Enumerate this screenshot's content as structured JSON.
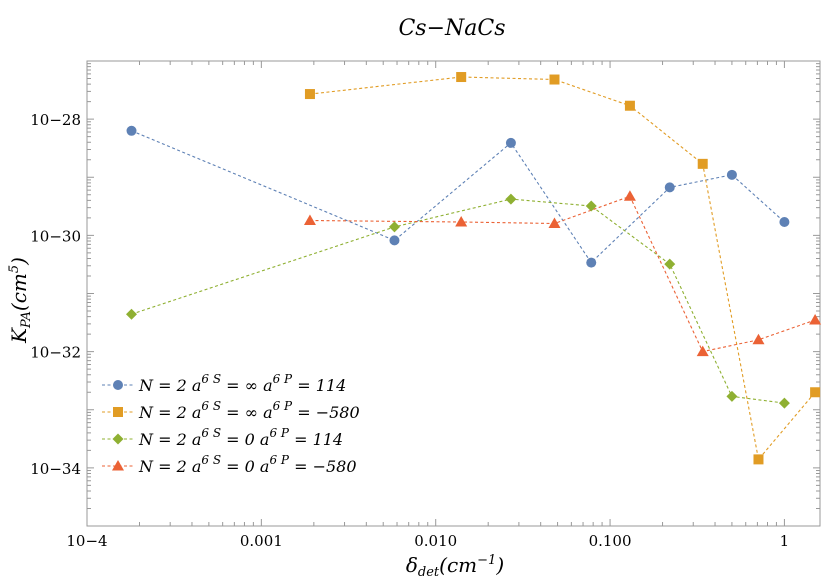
{
  "chart_data": {
    "type": "scatter",
    "title": "Cs−NaCs",
    "xlabel": "δdet(cm−1)",
    "ylabel": "KPA(cm5)",
    "x_scale": "log",
    "y_scale": "log",
    "xlim": [
      0.0001,
      1.6
    ],
    "ylim": [
      1e-35,
      1e-27
    ],
    "grid": false,
    "legend_position": "bottom-left",
    "x_ticks": [
      {
        "value": 0.0001,
        "label": "10−4"
      },
      {
        "value": 0.001,
        "label": "0.001"
      },
      {
        "value": 0.01,
        "label": "0.010"
      },
      {
        "value": 0.1,
        "label": "0.100"
      },
      {
        "value": 1,
        "label": "1"
      }
    ],
    "y_ticks": [
      {
        "value": 1e-28,
        "label": "10−28"
      },
      {
        "value": 1e-30,
        "label": "10−30"
      },
      {
        "value": 1e-32,
        "label": "10−32"
      },
      {
        "value": 1e-34,
        "label": "10−34"
      }
    ],
    "series": [
      {
        "name": "N = 2 a6S = ∞ a6P = 114",
        "color": "#5e81b5",
        "marker": "circle",
        "x": [
          0.00018,
          0.0058,
          0.027,
          0.078,
          0.22,
          0.5,
          1.0
        ],
        "y": [
          6.3e-29,
          8.2e-31,
          3.9e-29,
          3.4e-31,
          6.7e-30,
          1.1e-29,
          1.7e-30
        ]
      },
      {
        "name": "N = 2 a6S = ∞ a6P = −580",
        "color": "#e19c24",
        "marker": "square",
        "x": [
          0.0019,
          0.014,
          0.048,
          0.13,
          0.34,
          0.71,
          1.5
        ],
        "y": [
          2.7e-28,
          5.3e-28,
          4.8e-28,
          1.7e-28,
          1.7e-29,
          1.4e-34,
          2e-33
        ]
      },
      {
        "name": "N = 2 a6S = 0 a6P = 114",
        "color": "#8fb032",
        "marker": "diamond",
        "x": [
          0.00018,
          0.0058,
          0.027,
          0.078,
          0.22,
          0.5,
          1.0
        ],
        "y": [
          4.4e-32,
          1.4e-30,
          4.2e-30,
          3.2e-30,
          3.2e-31,
          1.7e-33,
          1.3e-33
        ]
      },
      {
        "name": "N = 2 a6S = 0 a6P = −580",
        "color": "#eb6235",
        "marker": "triangle",
        "x": [
          0.0019,
          0.014,
          0.048,
          0.13,
          0.34,
          0.71,
          1.5
        ],
        "y": [
          1.8e-30,
          1.7e-30,
          1.6e-30,
          4.7e-30,
          1e-32,
          1.6e-32,
          3.5e-32
        ]
      }
    ],
    "legend": [
      {
        "N": "N = 2",
        "aS_sym": "a",
        "aS_sup": "6 S",
        "aS_val": " = ∞",
        "aP_sym": "a",
        "aP_sup": "6 P",
        "aP_val": " = 114"
      },
      {
        "N": "N = 2",
        "aS_sym": "a",
        "aS_sup": "6 S",
        "aS_val": " = ∞",
        "aP_sym": "a",
        "aP_sup": "6 P",
        "aP_val": " = −580"
      },
      {
        "N": "N = 2",
        "aS_sym": "a",
        "aS_sup": "6 S",
        "aS_val": " = 0",
        "aP_sym": "a",
        "aP_sup": "6 P",
        "aP_val": " = 114"
      },
      {
        "N": "N = 2",
        "aS_sym": "a",
        "aS_sup": "6 S",
        "aS_val": " = 0",
        "aP_sym": "a",
        "aP_sup": "6 P",
        "aP_val": " = −580"
      }
    ],
    "axis_title_parts": {
      "x_main": "δ",
      "x_sub": "det",
      "x_rest": "(cm",
      "x_sup": "−1",
      "x_close": ")",
      "y_main": "K",
      "y_sub": "PA",
      "y_rest": "(cm",
      "y_sup": "5",
      "y_close": ")"
    }
  }
}
